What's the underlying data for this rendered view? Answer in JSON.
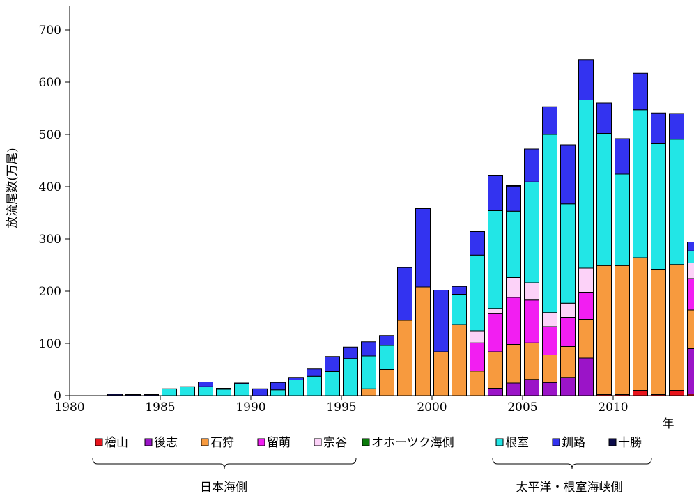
{
  "chart_data": {
    "type": "bar",
    "stacked": true,
    "ylabel": "放流尾数(万尾)",
    "xlabel": "年",
    "ylim": [
      0,
      750
    ],
    "yticks": [
      0,
      100,
      200,
      300,
      400,
      500,
      600,
      700
    ],
    "xticks": [
      1980,
      1985,
      1990,
      1995,
      2000,
      2005,
      2010
    ],
    "categories": [
      1982,
      1983,
      1984,
      1985,
      1986,
      1987,
      1988,
      1989,
      1990,
      1991,
      1992,
      1993,
      1994,
      1995,
      1996,
      1997,
      1998,
      1999,
      2000,
      2001,
      2002,
      2003,
      2004,
      2005,
      2006,
      2007,
      2008,
      2009,
      2010,
      2011,
      2012,
      2013,
      2014
    ],
    "series": [
      {
        "name": "檜山",
        "color": "#e8141c",
        "values": [
          0,
          0,
          0,
          0,
          0,
          0,
          0,
          0,
          0,
          0,
          0,
          0,
          0,
          0,
          0,
          0,
          0,
          0,
          0,
          0,
          0,
          0,
          0,
          0,
          0,
          0,
          0,
          2,
          2,
          10,
          2,
          10,
          3
        ]
      },
      {
        "name": "後志",
        "color": "#9b14c8",
        "values": [
          0,
          0,
          0,
          0,
          0,
          0,
          0,
          0,
          0,
          0,
          0,
          0,
          0,
          0,
          0,
          0,
          0,
          0,
          0,
          0,
          0,
          14,
          24,
          31,
          25,
          35,
          72,
          0,
          0,
          0,
          0,
          0,
          87
        ]
      },
      {
        "name": "石狩",
        "color": "#f79a3e",
        "values": [
          0,
          0,
          0,
          0,
          0,
          0,
          0,
          0,
          0,
          0,
          0,
          0,
          0,
          0,
          13,
          50,
          144,
          208,
          84,
          136,
          47,
          70,
          74,
          70,
          53,
          59,
          74,
          247,
          247,
          254,
          240,
          241,
          74
        ]
      },
      {
        "name": "留萌",
        "color": "#f21ef2",
        "values": [
          0,
          0,
          0,
          0,
          0,
          0,
          0,
          0,
          0,
          0,
          0,
          0,
          0,
          0,
          0,
          0,
          0,
          0,
          0,
          0,
          54,
          73,
          90,
          82,
          54,
          56,
          52,
          0,
          0,
          0,
          0,
          0,
          60
        ]
      },
      {
        "name": "宗谷",
        "color": "#fcd2f8",
        "values": [
          0,
          0,
          0,
          0,
          0,
          0,
          0,
          0,
          0,
          0,
          0,
          0,
          0,
          0,
          0,
          0,
          0,
          0,
          0,
          0,
          23,
          10,
          38,
          33,
          27,
          27,
          46,
          0,
          0,
          0,
          0,
          0,
          30
        ]
      },
      {
        "name": "オホーツク海側",
        "color": "#0a7a0a",
        "values": [
          0,
          0,
          0,
          0,
          0,
          0,
          0,
          0,
          0,
          0,
          0,
          0,
          0,
          0,
          0,
          0,
          0,
          0,
          0,
          0,
          0,
          0,
          0,
          0,
          0,
          0,
          0,
          0,
          0,
          0,
          0,
          0,
          0
        ]
      },
      {
        "name": "根室",
        "color": "#22e6e6",
        "values": [
          0,
          0,
          0,
          13,
          17,
          17,
          12,
          22,
          0,
          11,
          30,
          37,
          46,
          71,
          63,
          46,
          0,
          0,
          0,
          58,
          145,
          187,
          127,
          193,
          341,
          190,
          322,
          253,
          175,
          283,
          240,
          240,
          23
        ]
      },
      {
        "name": "釧路",
        "color": "#3333f0",
        "values": [
          0,
          0,
          0,
          0,
          0,
          9,
          0,
          0,
          13,
          14,
          5,
          14,
          29,
          22,
          27,
          19,
          101,
          150,
          118,
          15,
          45,
          68,
          47,
          63,
          53,
          113,
          77,
          58,
          68,
          70,
          59,
          49,
          17
        ]
      },
      {
        "name": "十勝",
        "color": "#0b0b4a",
        "values": [
          3,
          2,
          2,
          0,
          0,
          0,
          2,
          2,
          0,
          0,
          0,
          0,
          0,
          0,
          0,
          0,
          0,
          0,
          0,
          0,
          0,
          0,
          2,
          0,
          0,
          0,
          0,
          0,
          0,
          0,
          0,
          0,
          0
        ]
      }
    ],
    "group_labels": {
      "japan_sea": "日本海側",
      "pacific_nemuro": "太平洋・根室海峡側"
    }
  }
}
